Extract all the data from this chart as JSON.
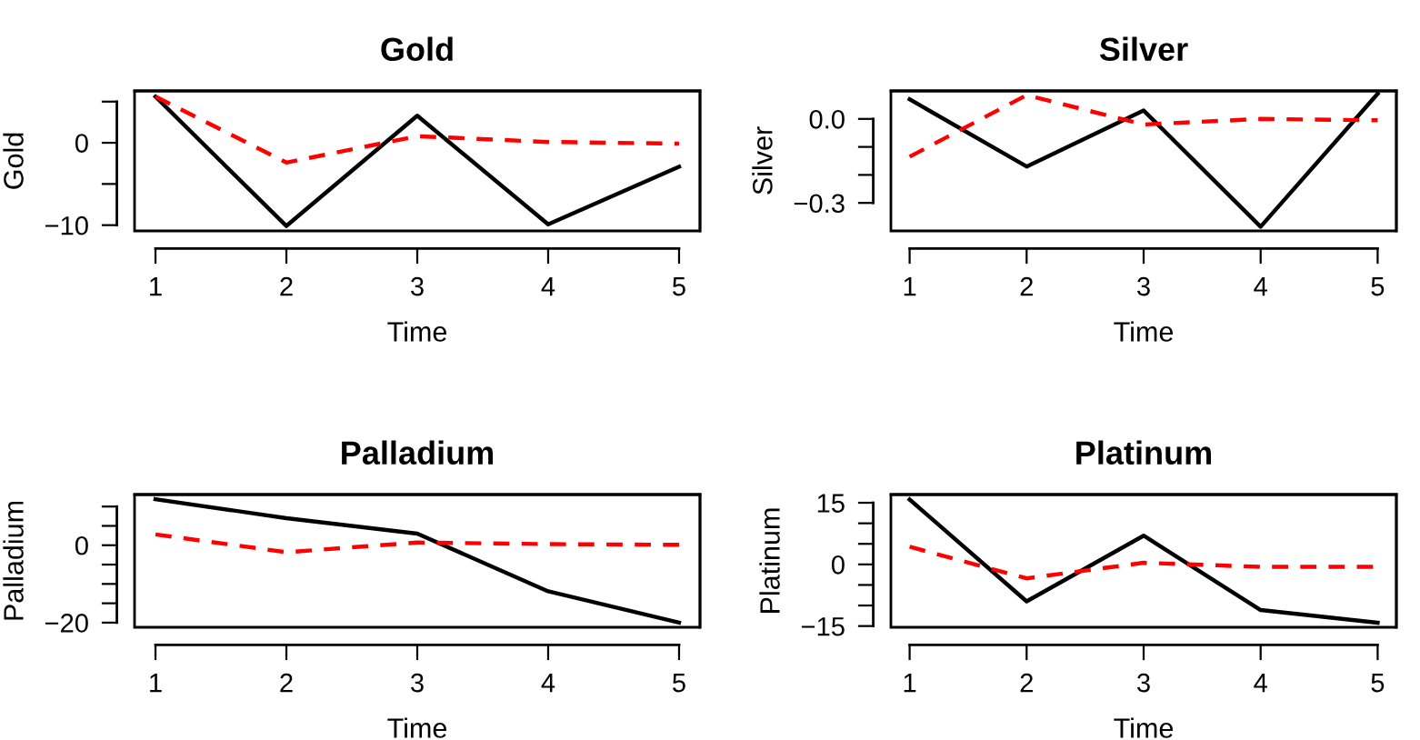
{
  "chart_data": [
    {
      "type": "line",
      "title": "Gold",
      "xlabel": "Time",
      "ylabel": "Gold",
      "x": [
        1,
        2,
        3,
        4,
        5
      ],
      "xlim": [
        0.84,
        5.16
      ],
      "xticks": [
        1,
        2,
        3,
        4,
        5
      ],
      "ylim": [
        -10.7,
        6.3
      ],
      "yticks": [
        {
          "value": -10,
          "label": "−10"
        },
        {
          "value": -5,
          "label": null
        },
        0,
        {
          "value": 5,
          "label": null
        }
      ],
      "grid": false,
      "legend": false,
      "series": [
        {
          "color": "#000000",
          "line_style": "solid",
          "values": [
            5.6,
            -10.1,
            3.3,
            -9.9,
            -2.9
          ]
        },
        {
          "color": "#ff0000",
          "line_style": "dashed",
          "values": [
            5.6,
            -2.4,
            0.8,
            0.1,
            -0.1
          ]
        }
      ]
    },
    {
      "type": "line",
      "title": "Silver",
      "xlabel": "Time",
      "ylabel": "Silver",
      "x": [
        1,
        2,
        3,
        4,
        5
      ],
      "xlim": [
        0.84,
        5.16
      ],
      "xticks": [
        1,
        2,
        3,
        4,
        5
      ],
      "ylim": [
        -0.4,
        0.1
      ],
      "yticks": [
        {
          "value": -0.3,
          "label": "−0.3"
        },
        {
          "value": -0.2,
          "label": null
        },
        {
          "value": -0.1,
          "label": null
        },
        {
          "value": 0,
          "label": "0.0"
        }
      ],
      "grid": false,
      "legend": false,
      "series": [
        {
          "color": "#000000",
          "line_style": "solid",
          "values": [
            0.07,
            -0.17,
            0.03,
            -0.385,
            0.09
          ]
        },
        {
          "color": "#ff0000",
          "line_style": "dashed",
          "values": [
            -0.135,
            0.085,
            -0.02,
            0.0,
            -0.005
          ]
        }
      ]
    },
    {
      "type": "line",
      "title": "Palladium",
      "xlabel": "Time",
      "ylabel": "Palladium",
      "x": [
        1,
        2,
        3,
        4,
        5
      ],
      "xlim": [
        0.84,
        5.16
      ],
      "xticks": [
        1,
        2,
        3,
        4,
        5
      ],
      "ylim": [
        -21.2,
        13.1
      ],
      "yticks": [
        {
          "value": -20,
          "label": "−20"
        },
        {
          "value": -15,
          "label": null
        },
        {
          "value": -10,
          "label": null
        },
        {
          "value": -5,
          "label": null
        },
        0,
        {
          "value": 5,
          "label": null
        },
        {
          "value": 10,
          "label": null
        }
      ],
      "grid": false,
      "legend": false,
      "series": [
        {
          "color": "#000000",
          "line_style": "solid",
          "values": [
            11.9,
            7.0,
            3.0,
            -11.9,
            -20
          ]
        },
        {
          "color": "#ff0000",
          "line_style": "dashed",
          "values": [
            2.8,
            -1.8,
            0.7,
            0.3,
            0.1
          ]
        }
      ]
    },
    {
      "type": "line",
      "title": "Platinum",
      "xlabel": "Time",
      "ylabel": "Platinum",
      "x": [
        1,
        2,
        3,
        4,
        5
      ],
      "xlim": [
        0.84,
        5.16
      ],
      "xticks": [
        1,
        2,
        3,
        4,
        5
      ],
      "ylim": [
        -15.3,
        17
      ],
      "yticks": [
        {
          "value": -15,
          "label": "−15"
        },
        {
          "value": -10,
          "label": null
        },
        {
          "value": -5,
          "label": null
        },
        0,
        {
          "value": 5,
          "label": null
        },
        {
          "value": 10,
          "label": null
        },
        15
      ],
      "grid": false,
      "legend": false,
      "series": [
        {
          "color": "#000000",
          "line_style": "solid",
          "values": [
            15.8,
            -9.0,
            7.0,
            -11.1,
            -14.2
          ]
        },
        {
          "color": "#ff0000",
          "line_style": "dashed",
          "values": [
            4.3,
            -3.4,
            0.4,
            -0.6,
            -0.6
          ]
        }
      ]
    }
  ]
}
